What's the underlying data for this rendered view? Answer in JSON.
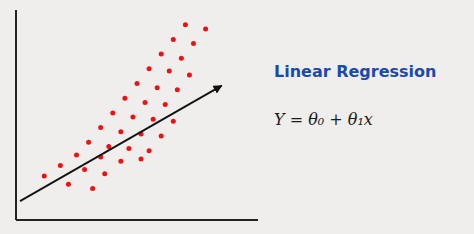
{
  "chart_data": {
    "type": "scatter",
    "title": "Linear Regression",
    "annotation": "Y = θ₀ + θ₁x",
    "series": [
      {
        "type": "scatter",
        "color": "#ee1111",
        "x": [
          0.35,
          0.65,
          0.95,
          0.55,
          0.85,
          1.1,
          0.75,
          1.05,
          1.3,
          1.55,
          0.9,
          1.15,
          1.4,
          1.65,
          1.05,
          1.3,
          1.55,
          1.8,
          1.2,
          1.45,
          1.7,
          1.95,
          1.35,
          1.6,
          1.85,
          1.5,
          1.75,
          2.0,
          1.65,
          1.9,
          2.15,
          1.8,
          2.05,
          1.95,
          2.2,
          2.1,
          2.35
        ],
        "values": [
          1.05,
          0.85,
          0.75,
          1.3,
          1.2,
          1.1,
          1.55,
          1.5,
          1.4,
          1.45,
          1.85,
          1.75,
          1.7,
          1.65,
          2.2,
          2.1,
          2.05,
          2.0,
          2.55,
          2.45,
          2.4,
          2.35,
          2.9,
          2.8,
          2.75,
          3.25,
          3.15,
          3.1,
          3.6,
          3.55,
          3.45,
          3.95,
          3.85,
          4.3,
          4.2,
          4.65,
          4.55
        ]
      },
      {
        "type": "line",
        "color": "#111111",
        "marker": "arrow",
        "x": [
          0.05,
          2.55
        ],
        "values": [
          0.45,
          3.2
        ]
      }
    ],
    "xlim": [
      0,
      3.0
    ],
    "ylim": [
      0,
      5.0
    ],
    "xticks": [],
    "yticks": [],
    "tick_labels": false,
    "grid": false
  }
}
